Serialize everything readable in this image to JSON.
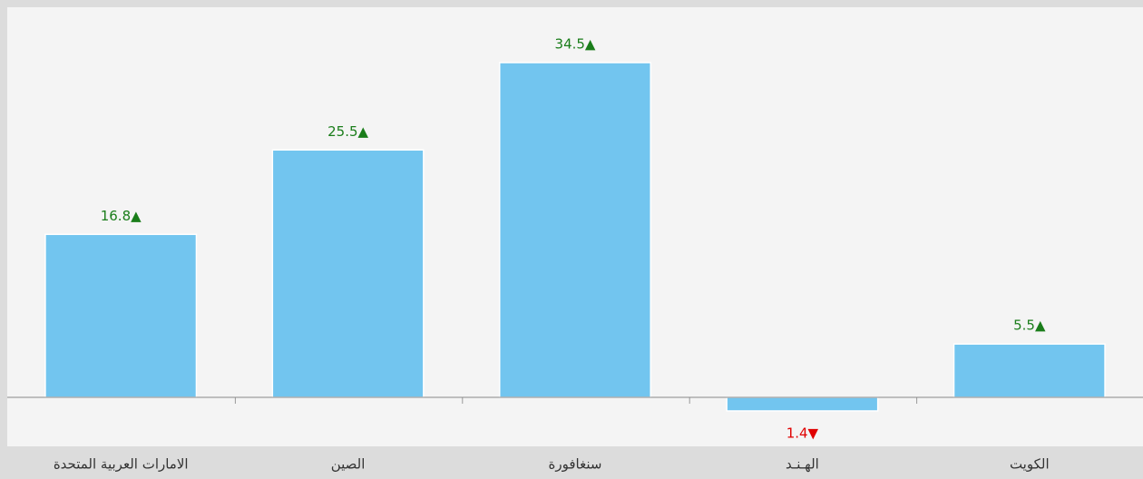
{
  "chart_data": {
    "type": "bar",
    "categories": [
      "الامارات العربية المتحدة",
      "الصين",
      "سنغافورة",
      "الهـنـد",
      "الكويت"
    ],
    "values": [
      16.8,
      25.5,
      34.5,
      -1.4,
      5.5
    ],
    "value_labels": [
      "16.8▲",
      "25.5▲",
      "34.5▲",
      "1.4▼",
      "5.5▲"
    ],
    "color": "#72c5ef",
    "positive_label_color": "#1a7d1a",
    "negative_label_color": "#e00000"
  }
}
